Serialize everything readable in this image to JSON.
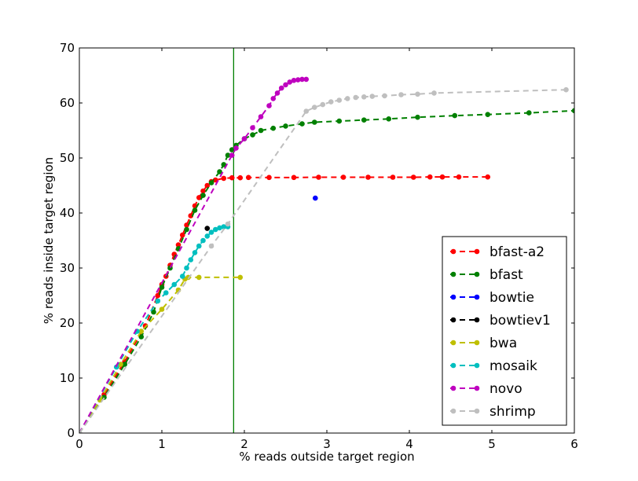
{
  "chart_data": {
    "type": "line",
    "xlabel": "% reads outside target region",
    "ylabel": "% reads inside target region",
    "xlim": [
      0,
      6
    ],
    "ylim": [
      0,
      70
    ],
    "xticks": [
      "0",
      "1",
      "2",
      "3",
      "4",
      "5",
      "6"
    ],
    "yticks": [
      "0",
      "10",
      "20",
      "30",
      "40",
      "50",
      "60",
      "70"
    ],
    "grid": false,
    "legend_position": "bottom-right",
    "vline": {
      "x": 1.87,
      "color": "#008000"
    },
    "series": [
      {
        "name": "bfast-a2",
        "color": "#ff0000",
        "points": [
          [
            0,
            0
          ],
          [
            0.3,
            7
          ],
          [
            0.55,
            13
          ],
          [
            0.8,
            19.5
          ],
          [
            0.95,
            25
          ],
          [
            1.0,
            27
          ],
          [
            1.05,
            28.5
          ],
          [
            1.1,
            30.5
          ],
          [
            1.15,
            32.5
          ],
          [
            1.2,
            34.2
          ],
          [
            1.25,
            36
          ],
          [
            1.3,
            37.8
          ],
          [
            1.35,
            39.5
          ],
          [
            1.4,
            41.3
          ],
          [
            1.45,
            42.8
          ],
          [
            1.5,
            44
          ],
          [
            1.55,
            45
          ],
          [
            1.6,
            45.7
          ],
          [
            1.65,
            46
          ],
          [
            1.75,
            46.3
          ],
          [
            1.85,
            46.4
          ],
          [
            1.95,
            46.4
          ],
          [
            2.05,
            46.45
          ],
          [
            2.3,
            46.45
          ],
          [
            2.6,
            46.45
          ],
          [
            2.9,
            46.5
          ],
          [
            3.2,
            46.5
          ],
          [
            3.5,
            46.5
          ],
          [
            3.8,
            46.5
          ],
          [
            4.05,
            46.5
          ],
          [
            4.25,
            46.55
          ],
          [
            4.4,
            46.55
          ],
          [
            4.6,
            46.55
          ],
          [
            4.95,
            46.55
          ]
        ]
      },
      {
        "name": "bfast",
        "color": "#008000",
        "points": [
          [
            0,
            0
          ],
          [
            0.3,
            6.5
          ],
          [
            0.55,
            12.5
          ],
          [
            0.75,
            17.5
          ],
          [
            0.9,
            22
          ],
          [
            1.0,
            26.5
          ],
          [
            1.1,
            30
          ],
          [
            1.2,
            33.5
          ],
          [
            1.3,
            37
          ],
          [
            1.4,
            40.5
          ],
          [
            1.5,
            43.2
          ],
          [
            1.6,
            45.5
          ],
          [
            1.7,
            47.5
          ],
          [
            1.75,
            48.8
          ],
          [
            1.8,
            50.5
          ],
          [
            1.85,
            51.5
          ],
          [
            1.9,
            52.3
          ],
          [
            2.0,
            53.5
          ],
          [
            2.1,
            54.2
          ],
          [
            2.2,
            55
          ],
          [
            2.35,
            55.4
          ],
          [
            2.5,
            55.8
          ],
          [
            2.7,
            56.2
          ],
          [
            2.85,
            56.5
          ],
          [
            3.15,
            56.7
          ],
          [
            3.45,
            56.9
          ],
          [
            3.75,
            57.1
          ],
          [
            4.1,
            57.4
          ],
          [
            4.55,
            57.7
          ],
          [
            4.95,
            57.9
          ],
          [
            5.45,
            58.2
          ],
          [
            6.0,
            58.6
          ]
        ]
      },
      {
        "name": "bowtie",
        "color": "#0000ff",
        "points": [
          [
            2.86,
            42.7
          ]
        ]
      },
      {
        "name": "bowtiev1",
        "color": "#000000",
        "points": [
          [
            1.55,
            37.2
          ]
        ]
      },
      {
        "name": "bwa",
        "color": "#bfbf00",
        "points": [
          [
            0,
            0
          ],
          [
            0.25,
            6
          ],
          [
            0.5,
            12.5
          ],
          [
            0.75,
            18.5
          ],
          [
            1.0,
            22.5
          ],
          [
            1.2,
            26
          ],
          [
            1.28,
            28
          ],
          [
            1.32,
            28.3
          ],
          [
            1.45,
            28.3
          ],
          [
            1.95,
            28.3
          ]
        ]
      },
      {
        "name": "mosaik",
        "color": "#00bfbf",
        "points": [
          [
            0,
            0
          ],
          [
            0.45,
            12
          ],
          [
            0.7,
            18.5
          ],
          [
            0.95,
            24
          ],
          [
            1.05,
            25.5
          ],
          [
            1.15,
            27
          ],
          [
            1.25,
            28.5
          ],
          [
            1.3,
            30
          ],
          [
            1.35,
            31.5
          ],
          [
            1.4,
            32.8
          ],
          [
            1.45,
            34
          ],
          [
            1.5,
            35
          ],
          [
            1.55,
            35.8
          ],
          [
            1.6,
            36.5
          ],
          [
            1.65,
            37
          ],
          [
            1.7,
            37.3
          ],
          [
            1.75,
            37.5
          ],
          [
            1.8,
            37.5
          ]
        ]
      },
      {
        "name": "novo",
        "color": "#bf00bf",
        "points": [
          [
            0,
            0
          ],
          [
            1.85,
            50.5
          ],
          [
            1.9,
            51.8
          ],
          [
            2.0,
            53.5
          ],
          [
            2.1,
            55.5
          ],
          [
            2.2,
            57.5
          ],
          [
            2.3,
            59.5
          ],
          [
            2.35,
            60.8
          ],
          [
            2.4,
            61.8
          ],
          [
            2.45,
            62.7
          ],
          [
            2.5,
            63.3
          ],
          [
            2.55,
            63.8
          ],
          [
            2.6,
            64.1
          ],
          [
            2.65,
            64.2
          ],
          [
            2.7,
            64.3
          ],
          [
            2.75,
            64.3
          ]
        ]
      },
      {
        "name": "shrimp",
        "color": "#bfbfbf",
        "points": [
          [
            0,
            0
          ],
          [
            1.6,
            34
          ],
          [
            1.8,
            38
          ],
          [
            2.75,
            58.5
          ],
          [
            2.85,
            59.2
          ],
          [
            2.95,
            59.7
          ],
          [
            3.05,
            60.2
          ],
          [
            3.15,
            60.5
          ],
          [
            3.25,
            60.8
          ],
          [
            3.35,
            61
          ],
          [
            3.45,
            61.1
          ],
          [
            3.55,
            61.2
          ],
          [
            3.7,
            61.3
          ],
          [
            3.9,
            61.5
          ],
          [
            4.1,
            61.6
          ],
          [
            4.3,
            61.8
          ],
          [
            5.9,
            62.4
          ]
        ]
      }
    ]
  }
}
